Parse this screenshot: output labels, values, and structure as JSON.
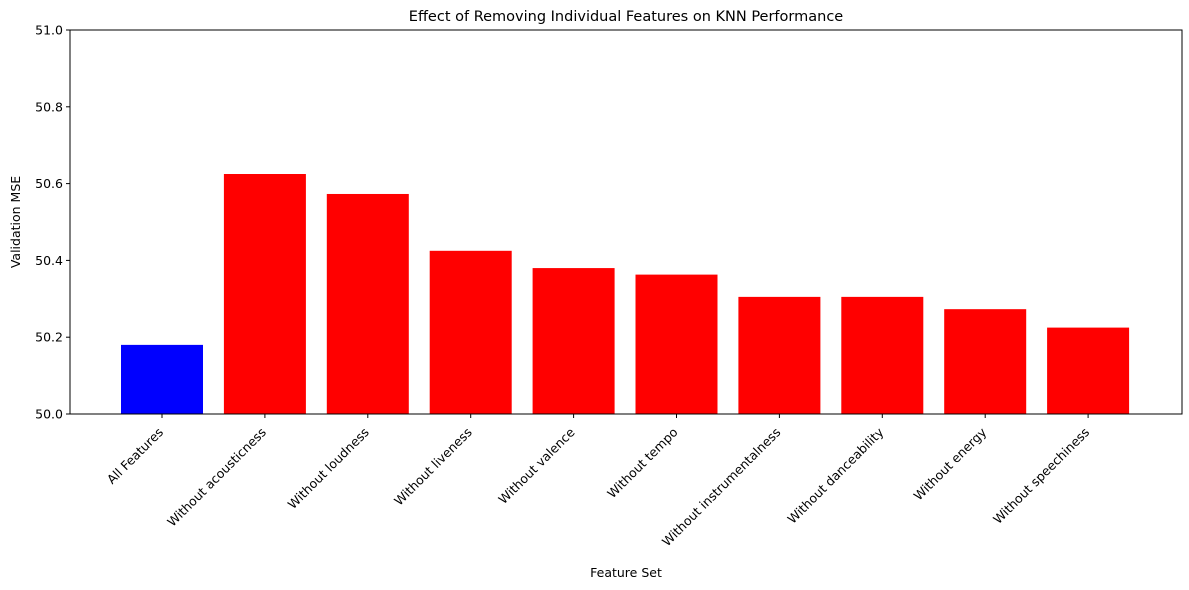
{
  "chart_data": {
    "type": "bar",
    "title": "Effect of Removing Individual Features on KNN Performance",
    "xlabel": "Feature Set",
    "ylabel": "Validation MSE",
    "ylim": [
      50.0,
      51.0
    ],
    "yticks": [
      "50.0",
      "50.2",
      "50.4",
      "50.6",
      "50.8",
      "51.0"
    ],
    "grid": false,
    "legend": "none",
    "categories": [
      "All Features",
      "Without acousticness",
      "Without loudness",
      "Without liveness",
      "Without valence",
      "Without tempo",
      "Without instrumentalness",
      "Without danceability",
      "Without energy",
      "Without speechiness"
    ],
    "values": [
      50.18,
      50.625,
      50.573,
      50.425,
      50.38,
      50.363,
      50.305,
      50.305,
      50.273,
      50.225
    ],
    "colors": [
      "#0000ff",
      "#ff0000",
      "#ff0000",
      "#ff0000",
      "#ff0000",
      "#ff0000",
      "#ff0000",
      "#ff0000",
      "#ff0000",
      "#ff0000"
    ]
  }
}
